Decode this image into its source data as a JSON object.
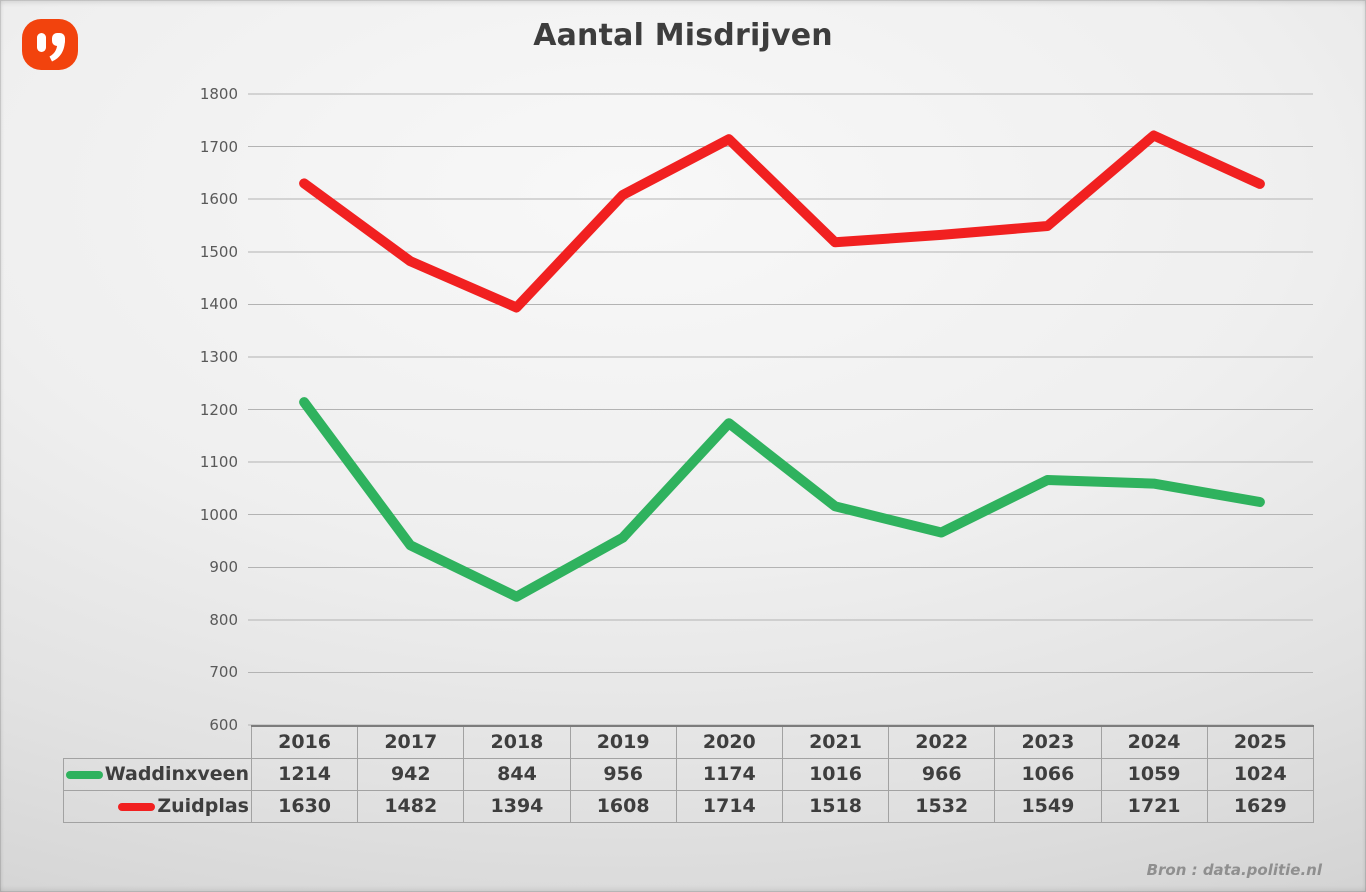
{
  "title": "Aantal Misdrijven",
  "source_note": "Bron : data.politie.nl",
  "logo": {
    "name": "ij-quote-logo",
    "background": "#f2430d",
    "glyph_color": "#ffffff"
  },
  "chart_data": {
    "type": "line",
    "title": "Aantal Misdrijven",
    "categories": [
      "2016",
      "2017",
      "2018",
      "2019",
      "2020",
      "2021",
      "2022",
      "2023",
      "2024",
      "2025"
    ],
    "series": [
      {
        "name": "Waddinxveen",
        "color": "#2fb25e",
        "values": [
          1214,
          942,
          844,
          956,
          1174,
          1016,
          966,
          1066,
          1059,
          1024
        ]
      },
      {
        "name": "Zuidplas",
        "color": "#f12020",
        "values": [
          1630,
          1482,
          1394,
          1608,
          1714,
          1518,
          1532,
          1549,
          1721,
          1629
        ]
      }
    ],
    "ylim": [
      600,
      1800
    ],
    "ytick_step": 100,
    "grid": true,
    "line_width": 10,
    "markers": false,
    "legend_position": "table row headers below chart"
  },
  "colors": {
    "grid_line": "#b3b3b3",
    "axis_text": "#595959",
    "table_border": "#a2a2a2",
    "table_text": "#3e3e3e",
    "title_text": "#3d3d3d",
    "source_text": "#8f8f8f"
  }
}
